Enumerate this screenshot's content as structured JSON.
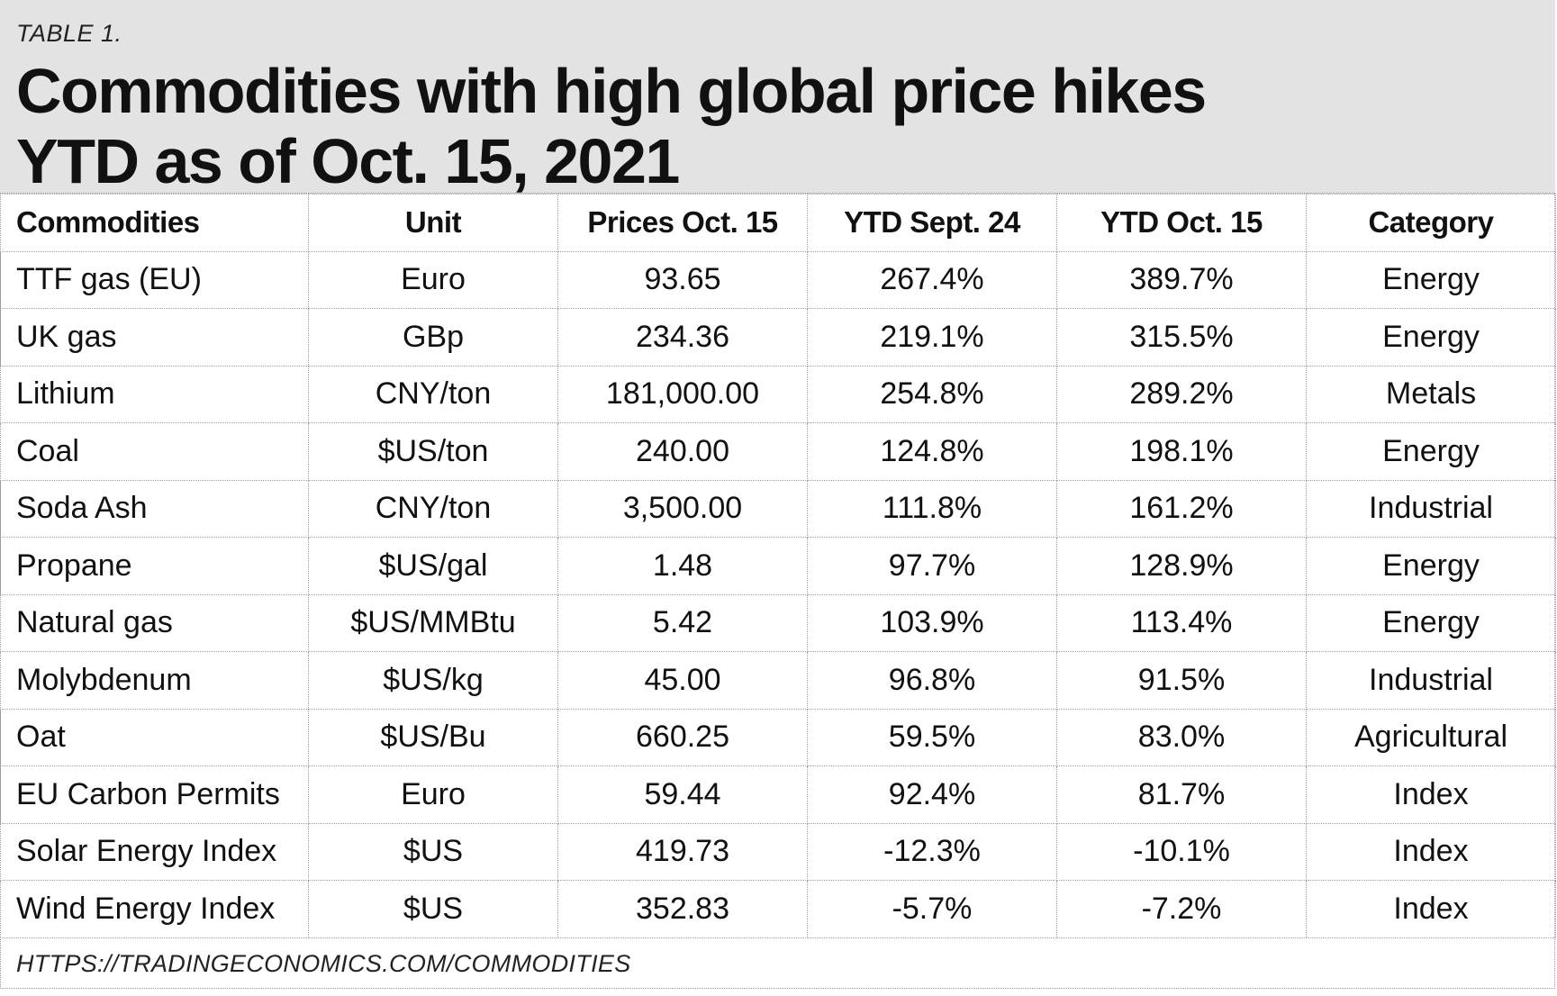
{
  "table_label": "TABLE 1.",
  "title_line1": "Commodities with high global price hikes",
  "title_line2": "YTD as of Oct. 15, 2021",
  "columns": [
    "Commodities",
    "Unit",
    "Prices Oct. 15",
    "YTD Sept. 24",
    "YTD Oct. 15",
    "Category"
  ],
  "rows": [
    [
      "TTF gas (EU)",
      "Euro",
      "93.65",
      "267.4%",
      "389.7%",
      "Energy"
    ],
    [
      "UK gas",
      "GBp",
      "234.36",
      "219.1%",
      "315.5%",
      "Energy"
    ],
    [
      "Lithium",
      "CNY/ton",
      "181,000.00",
      "254.8%",
      "289.2%",
      "Metals"
    ],
    [
      "Coal",
      "$US/ton",
      "240.00",
      "124.8%",
      "198.1%",
      "Energy"
    ],
    [
      "Soda Ash",
      "CNY/ton",
      "3,500.00",
      "111.8%",
      "161.2%",
      "Industrial"
    ],
    [
      "Propane",
      "$US/gal",
      "1.48",
      "97.7%",
      "128.9%",
      "Energy"
    ],
    [
      "Natural gas",
      "$US/MMBtu",
      "5.42",
      "103.9%",
      "113.4%",
      "Energy"
    ],
    [
      "Molybdenum",
      "$US/kg",
      "45.00",
      "96.8%",
      "91.5%",
      "Industrial"
    ],
    [
      "Oat",
      "$US/Bu",
      "660.25",
      "59.5%",
      "83.0%",
      "Agricultural"
    ],
    [
      "EU Carbon Permits",
      "Euro",
      "59.44",
      "92.4%",
      "81.7%",
      "Index"
    ],
    [
      "Solar Energy Index",
      "$US",
      "419.73",
      "-12.3%",
      "-10.1%",
      "Index"
    ],
    [
      "Wind Energy Index",
      "$US",
      "352.83",
      "-5.7%",
      "-7.2%",
      "Index"
    ]
  ],
  "source": "HTTPS://TRADINGECONOMICS.COM/COMMODITIES",
  "colors": {
    "header_bg": "#e3e3e3",
    "text": "#111111",
    "grid": "#a0a0a0"
  }
}
